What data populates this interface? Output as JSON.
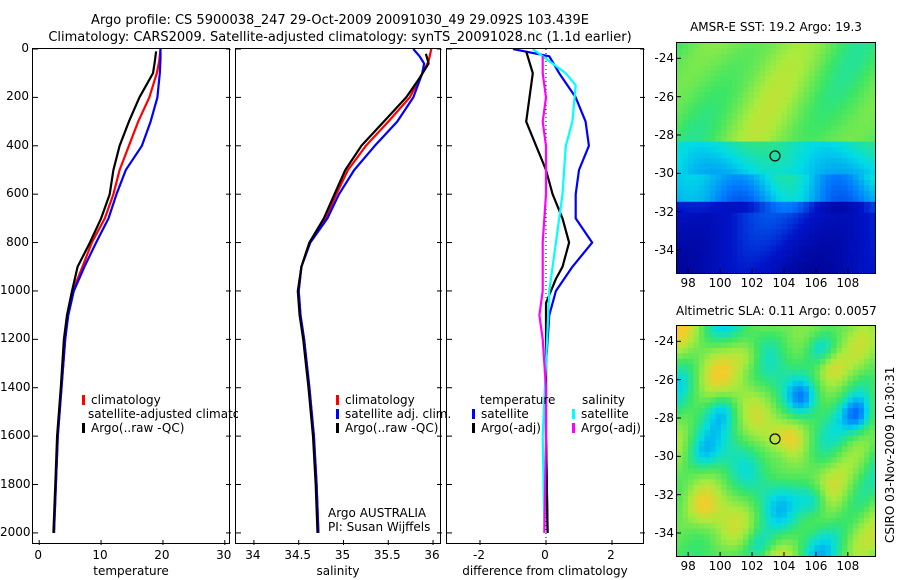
{
  "header": {
    "line1": "Argo profile: CS 5900038_247 29-Oct-2009 20091030_49 29.092S 103.439E",
    "line2": "Climatology: CARS2009. Satellite-adjusted climatology: synTS_20091028.nc (1.1d earlier)"
  },
  "colors": {
    "climatology": "#ff0000",
    "satellite": "#0000ff",
    "argo": "#000000",
    "sat_salinity": "#00ffff",
    "argo_salinity": "#ff00ff"
  },
  "chart_data": [
    {
      "type": "line",
      "id": "temperature",
      "xlabel": "temperature",
      "xlim": [
        -1,
        31
      ],
      "ylim": [
        0,
        2050
      ],
      "y_reversed": true,
      "xticks": [
        "0",
        "10",
        "20",
        "30"
      ],
      "xtick_values": [
        0,
        10,
        20,
        30
      ],
      "yticks": [
        "0",
        "200",
        "400",
        "600",
        "800",
        "1000",
        "1200",
        "1400",
        "1600",
        "1800",
        "2000"
      ],
      "ytick_values": [
        0,
        200,
        400,
        600,
        800,
        1000,
        1200,
        1400,
        1600,
        1800,
        2000
      ],
      "legend": [
        "climatology",
        "satellite-adjusted climatolog",
        "Argo(..raw -QC)"
      ],
      "series": [
        {
          "name": "climatology",
          "color": "#ff0000",
          "points": [
            [
              19.6,
              0
            ],
            [
              19.4,
              50
            ],
            [
              19.0,
              100
            ],
            [
              17.8,
              200
            ],
            [
              16.0,
              300
            ],
            [
              14.5,
              400
            ],
            [
              13.0,
              500
            ],
            [
              12.0,
              600
            ],
            [
              10.6,
              700
            ],
            [
              8.5,
              800
            ],
            [
              7.0,
              900
            ],
            [
              5.4,
              1000
            ],
            [
              4.6,
              1100
            ],
            [
              4.2,
              1200
            ],
            [
              3.6,
              1400
            ],
            [
              3.0,
              1600
            ],
            [
              2.7,
              1800
            ],
            [
              2.4,
              2000
            ]
          ]
        },
        {
          "name": "satellite-adjusted climatology",
          "color": "#0000ff",
          "points": [
            [
              19.6,
              0
            ],
            [
              19.6,
              40
            ],
            [
              19.5,
              100
            ],
            [
              19.1,
              200
            ],
            [
              18.0,
              300
            ],
            [
              16.6,
              400
            ],
            [
              14.0,
              500
            ],
            [
              12.5,
              600
            ],
            [
              11.2,
              700
            ],
            [
              9.2,
              800
            ],
            [
              7.3,
              900
            ],
            [
              5.6,
              1000
            ],
            [
              4.7,
              1100
            ],
            [
              4.2,
              1200
            ],
            [
              3.6,
              1400
            ],
            [
              3.0,
              1600
            ],
            [
              2.7,
              1800
            ],
            [
              2.4,
              2000
            ]
          ]
        },
        {
          "name": "Argo(..raw -QC)",
          "color": "#000000",
          "points": [
            [
              18.9,
              10
            ],
            [
              18.7,
              50
            ],
            [
              18.4,
              100
            ],
            [
              16.2,
              200
            ],
            [
              14.5,
              300
            ],
            [
              13.0,
              400
            ],
            [
              12.0,
              500
            ],
            [
              11.4,
              600
            ],
            [
              10.0,
              700
            ],
            [
              8.2,
              800
            ],
            [
              6.2,
              900
            ],
            [
              5.3,
              1000
            ],
            [
              4.5,
              1100
            ],
            [
              4.0,
              1200
            ],
            [
              3.5,
              1400
            ],
            [
              2.9,
              1600
            ],
            [
              2.6,
              1800
            ],
            [
              2.3,
              2000
            ]
          ]
        }
      ]
    },
    {
      "type": "line",
      "id": "salinity",
      "xlabel": "salinity",
      "xlim": [
        33.8,
        36.1
      ],
      "ylim": [
        0,
        2050
      ],
      "y_reversed": true,
      "xticks": [
        "34",
        "34.5",
        "35",
        "35.5",
        "36"
      ],
      "xtick_values": [
        34,
        34.5,
        35,
        35.5,
        36
      ],
      "legend": [
        "climatology",
        "satellite adj. clim.",
        "Argo(..raw -QC)"
      ],
      "annotation": [
        "Argo AUSTRALIA",
        "PI: Susan Wijffels"
      ],
      "series": [
        {
          "name": "climatology",
          "color": "#ff0000",
          "points": [
            [
              35.98,
              0
            ],
            [
              35.95,
              50
            ],
            [
              35.88,
              100
            ],
            [
              35.74,
              200
            ],
            [
              35.5,
              300
            ],
            [
              35.25,
              400
            ],
            [
              35.05,
              500
            ],
            [
              34.92,
              600
            ],
            [
              34.8,
              700
            ],
            [
              34.62,
              800
            ],
            [
              34.53,
              900
            ],
            [
              34.5,
              1000
            ],
            [
              34.52,
              1100
            ],
            [
              34.56,
              1200
            ],
            [
              34.62,
              1400
            ],
            [
              34.67,
              1600
            ],
            [
              34.7,
              1800
            ],
            [
              34.72,
              2000
            ]
          ]
        },
        {
          "name": "satellite adj. clim.",
          "color": "#0000ff",
          "points": [
            [
              35.78,
              0
            ],
            [
              35.85,
              30
            ],
            [
              35.9,
              60
            ],
            [
              35.88,
              100
            ],
            [
              35.78,
              200
            ],
            [
              35.6,
              300
            ],
            [
              35.35,
              400
            ],
            [
              35.12,
              500
            ],
            [
              34.95,
              600
            ],
            [
              34.82,
              700
            ],
            [
              34.63,
              800
            ],
            [
              34.53,
              900
            ],
            [
              34.5,
              1000
            ],
            [
              34.52,
              1100
            ],
            [
              34.56,
              1200
            ],
            [
              34.62,
              1400
            ],
            [
              34.67,
              1600
            ],
            [
              34.7,
              1800
            ],
            [
              34.72,
              2000
            ]
          ]
        },
        {
          "name": "Argo(..raw -QC)",
          "color": "#000000",
          "points": [
            [
              35.92,
              20
            ],
            [
              35.95,
              60
            ],
            [
              35.85,
              120
            ],
            [
              35.7,
              200
            ],
            [
              35.45,
              300
            ],
            [
              35.2,
              400
            ],
            [
              35.02,
              500
            ],
            [
              34.9,
              600
            ],
            [
              34.78,
              700
            ],
            [
              34.62,
              800
            ],
            [
              34.53,
              900
            ],
            [
              34.49,
              1000
            ],
            [
              34.51,
              1100
            ],
            [
              34.55,
              1200
            ],
            [
              34.61,
              1400
            ],
            [
              34.66,
              1600
            ],
            [
              34.69,
              1800
            ],
            [
              34.71,
              2000
            ]
          ]
        }
      ]
    },
    {
      "type": "line",
      "id": "difference",
      "xlabel": "difference from climatology",
      "xlim": [
        -3,
        3
      ],
      "ylim": [
        0,
        2050
      ],
      "y_reversed": true,
      "xticks": [
        "-2",
        "0",
        "2"
      ],
      "xtick_values": [
        -2,
        0,
        2
      ],
      "legend_left_title": "temperature",
      "legend_right_title": "salinity",
      "legend_left": [
        "satellite",
        "Argo(-adj)"
      ],
      "legend_right": [
        "satellite",
        "Argo(-adj)"
      ],
      "series": [
        {
          "name": "temperature satellite",
          "color": "#0000ff",
          "points": [
            [
              -1.0,
              0
            ],
            [
              0.1,
              30
            ],
            [
              0.4,
              100
            ],
            [
              0.9,
              200
            ],
            [
              1.2,
              300
            ],
            [
              1.3,
              400
            ],
            [
              1.0,
              500
            ],
            [
              0.9,
              600
            ],
            [
              0.9,
              700
            ],
            [
              1.4,
              800
            ],
            [
              0.8,
              900
            ],
            [
              0.3,
              1000
            ],
            [
              0.1,
              1100
            ],
            [
              0.0,
              1300
            ],
            [
              0.0,
              1600
            ],
            [
              0.05,
              2000
            ]
          ]
        },
        {
          "name": "temperature Argo(-adj)",
          "color": "#000000",
          "points": [
            [
              -0.6,
              10
            ],
            [
              -0.4,
              100
            ],
            [
              -0.5,
              200
            ],
            [
              -0.6,
              300
            ],
            [
              -0.3,
              400
            ],
            [
              0.0,
              500
            ],
            [
              0.2,
              600
            ],
            [
              0.5,
              700
            ],
            [
              0.7,
              800
            ],
            [
              0.5,
              900
            ],
            [
              0.3,
              950
            ],
            [
              0.0,
              1050
            ],
            [
              0.0,
              1300
            ],
            [
              0.0,
              1600
            ],
            [
              0.05,
              2000
            ]
          ]
        },
        {
          "name": "salinity satellite",
          "color": "#00ffff",
          "points": [
            [
              -0.4,
              0
            ],
            [
              0.1,
              50
            ],
            [
              0.6,
              100
            ],
            [
              0.9,
              150
            ],
            [
              0.8,
              300
            ],
            [
              0.6,
              400
            ],
            [
              0.5,
              600
            ],
            [
              0.3,
              800
            ],
            [
              0.1,
              1000
            ],
            [
              0.0,
              1300
            ],
            [
              -0.1,
              1600
            ],
            [
              -0.05,
              2000
            ]
          ]
        },
        {
          "name": "salinity Argo(-adj)",
          "color": "#ff00ff",
          "points": [
            [
              -0.1,
              30
            ],
            [
              -0.1,
              100
            ],
            [
              0.0,
              200
            ],
            [
              -0.1,
              300
            ],
            [
              0.0,
              400
            ],
            [
              0.0,
              600
            ],
            [
              -0.1,
              800
            ],
            [
              -0.1,
              1000
            ],
            [
              -0.2,
              1100
            ],
            [
              -0.1,
              1200
            ],
            [
              0.0,
              1400
            ],
            [
              0.0,
              1600
            ],
            [
              -0.05,
              2000
            ]
          ]
        }
      ]
    },
    {
      "type": "heatmap",
      "id": "amsr-sst",
      "title": "AMSR-E SST: 19.2 Argo: 19.3",
      "xticks": [
        "98",
        "100",
        "102",
        "104",
        "106",
        "108"
      ],
      "xtick_values": [
        98,
        100,
        102,
        104,
        106,
        108
      ],
      "yticks": [
        "-24",
        "-26",
        "-28",
        "-30",
        "-32",
        "-34"
      ],
      "ytick_values": [
        -24,
        -26,
        -28,
        -30,
        -32,
        -34
      ],
      "xlim": [
        97.3,
        109.7
      ],
      "ylim": [
        -35.2,
        -23.2
      ],
      "marker": {
        "lon": 103.439,
        "lat": -29.092
      }
    },
    {
      "type": "heatmap",
      "id": "altimetric-sla",
      "title": "Altimetric SLA: 0.11  Argo: 0.0057",
      "xticks": [
        "98",
        "100",
        "102",
        "104",
        "106",
        "108"
      ],
      "xtick_values": [
        98,
        100,
        102,
        104,
        106,
        108
      ],
      "yticks": [
        "-24",
        "-26",
        "-28",
        "-30",
        "-32",
        "-34"
      ],
      "ytick_values": [
        -24,
        -26,
        -28,
        -30,
        -32,
        -34
      ],
      "xlim": [
        97.3,
        109.7
      ],
      "ylim": [
        -35.2,
        -23.2
      ],
      "marker": {
        "lon": 103.439,
        "lat": -29.092
      }
    }
  ],
  "credit": "CSIRO 03-Nov-2009 10:30:31"
}
